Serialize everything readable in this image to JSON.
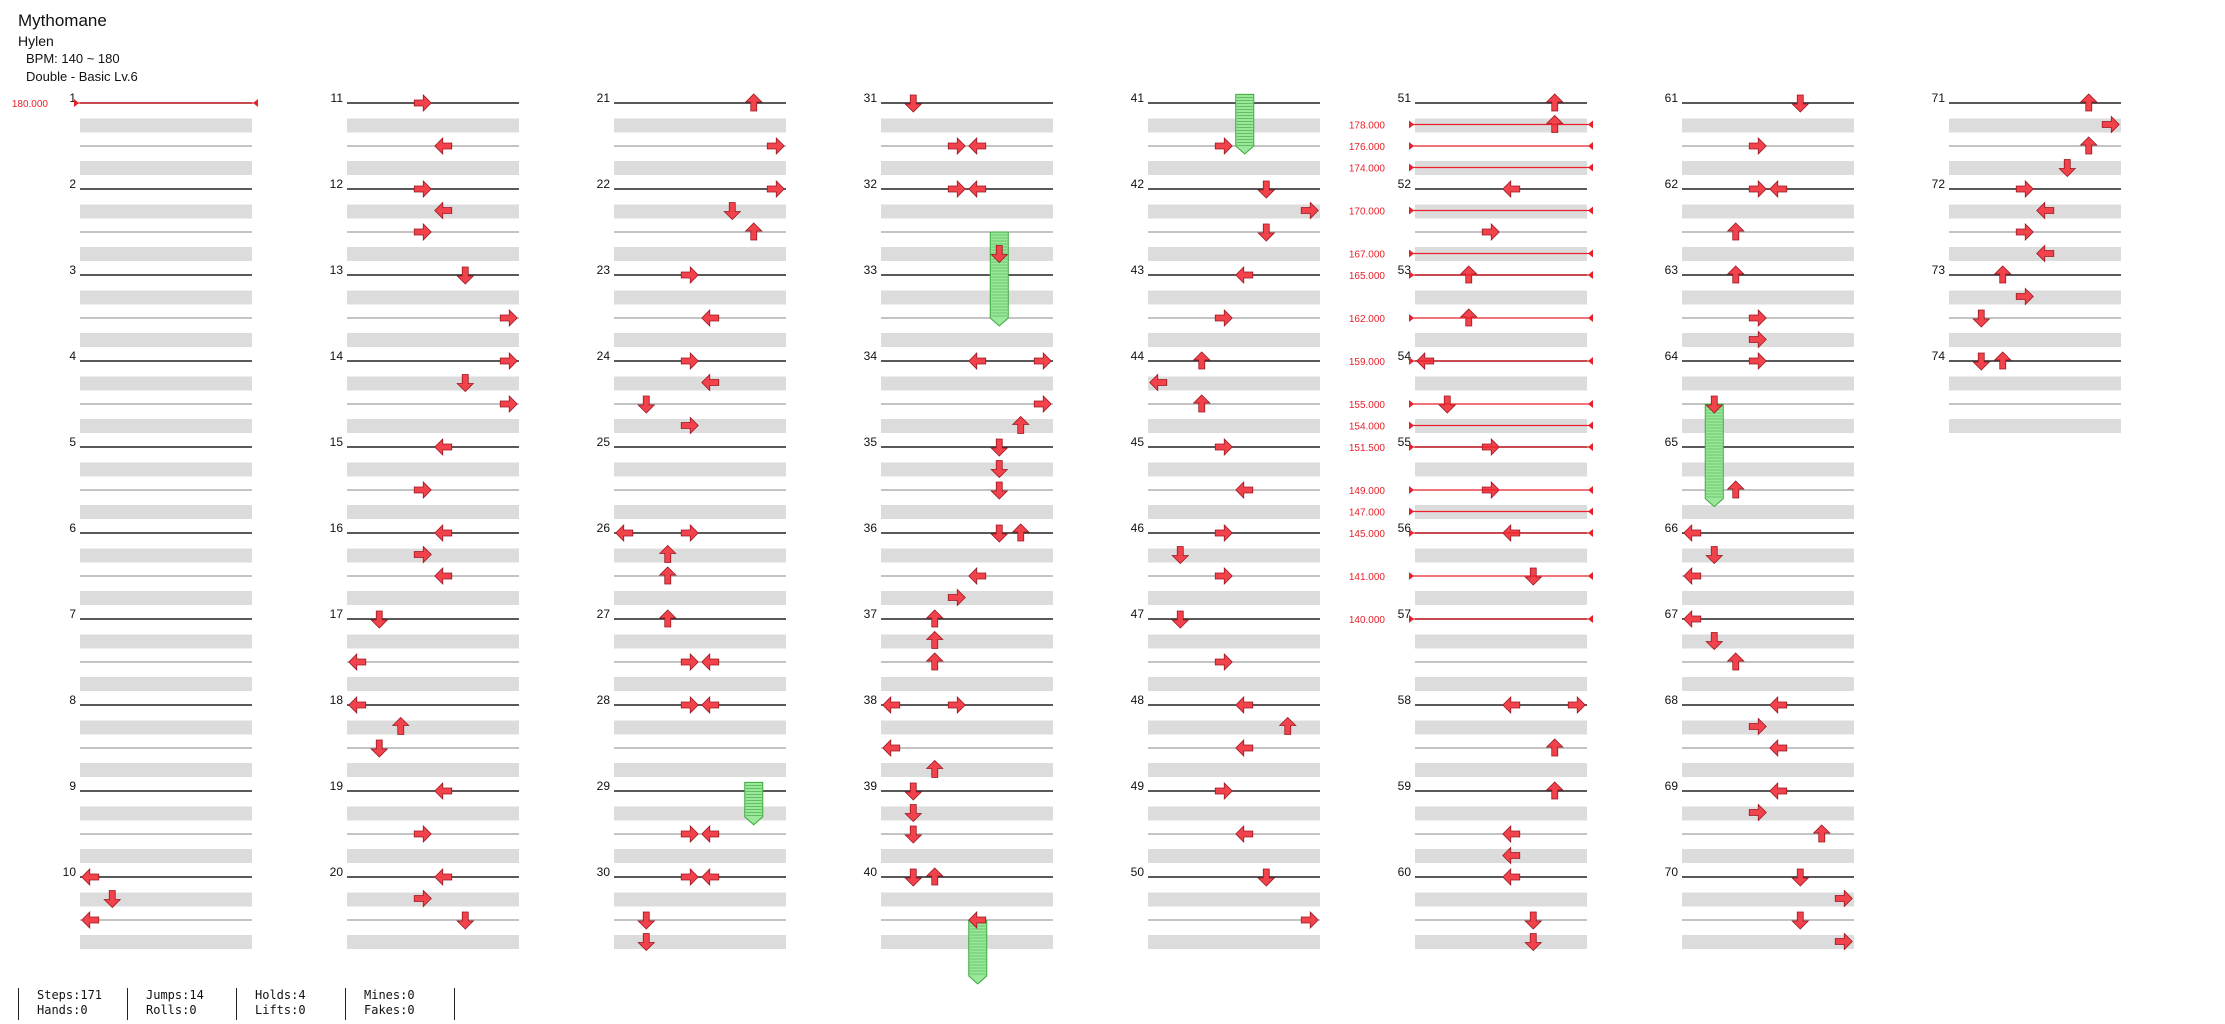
{
  "song": {
    "title": "Mythomane",
    "artist": "Hylen",
    "bpm_label": "BPM: 140 ~ 180",
    "difficulty_label": "Double - Basic Lv.6"
  },
  "chart_data": {
    "type": "other",
    "measures_per_column": 10,
    "measures": [
      {
        "n": 1,
        "notes": []
      },
      {
        "n": 2,
        "notes": []
      },
      {
        "n": 3,
        "notes": []
      },
      {
        "n": 4,
        "notes": []
      },
      {
        "n": 5,
        "notes": []
      },
      {
        "n": 6,
        "notes": []
      },
      {
        "n": 7,
        "notes": []
      },
      {
        "n": 8,
        "notes": []
      },
      {
        "n": 9,
        "notes": []
      },
      {
        "n": 10,
        "notes": [
          [
            0,
            0
          ],
          [
            1,
            1
          ],
          [
            2,
            0
          ]
        ]
      },
      {
        "n": 11,
        "notes": [
          [
            0,
            3
          ],
          [
            2,
            4
          ]
        ]
      },
      {
        "n": 12,
        "notes": [
          [
            0,
            3
          ],
          [
            1,
            4
          ],
          [
            2,
            3
          ]
        ]
      },
      {
        "n": 13,
        "notes": [
          [
            0,
            5
          ],
          [
            2,
            7
          ]
        ]
      },
      {
        "n": 14,
        "notes": [
          [
            0,
            7
          ],
          [
            1,
            5
          ],
          [
            2,
            7
          ]
        ]
      },
      {
        "n": 15,
        "notes": [
          [
            0,
            4
          ],
          [
            2,
            3
          ]
        ]
      },
      {
        "n": 16,
        "notes": [
          [
            0,
            4
          ],
          [
            1,
            3
          ],
          [
            2,
            4
          ]
        ]
      },
      {
        "n": 17,
        "notes": [
          [
            0,
            1
          ],
          [
            2,
            0
          ]
        ]
      },
      {
        "n": 18,
        "notes": [
          [
            0,
            0
          ],
          [
            1,
            2
          ],
          [
            2,
            1
          ]
        ]
      },
      {
        "n": 19,
        "notes": [
          [
            0,
            4
          ],
          [
            2,
            3
          ]
        ]
      },
      {
        "n": 20,
        "notes": [
          [
            0,
            4
          ],
          [
            1,
            3
          ],
          [
            2,
            5
          ]
        ]
      },
      {
        "n": 21,
        "notes": [
          [
            0,
            6
          ],
          [
            2,
            7
          ]
        ]
      },
      {
        "n": 22,
        "notes": [
          [
            0,
            7
          ],
          [
            1,
            5
          ],
          [
            2,
            6
          ]
        ]
      },
      {
        "n": 23,
        "notes": [
          [
            0,
            3
          ],
          [
            2,
            4
          ]
        ]
      },
      {
        "n": 24,
        "notes": [
          [
            0,
            3
          ],
          [
            1,
            4
          ],
          [
            2,
            1
          ],
          [
            3,
            3
          ]
        ]
      },
      {
        "n": 25,
        "notes": []
      },
      {
        "n": 26,
        "notes": [
          [
            0,
            0
          ],
          [
            0,
            3
          ],
          [
            1,
            2
          ],
          [
            2,
            2
          ]
        ]
      },
      {
        "n": 27,
        "notes": [
          [
            0,
            2
          ],
          [
            2,
            3
          ],
          [
            2,
            4
          ]
        ]
      },
      {
        "n": 28,
        "notes": [
          [
            0,
            3
          ],
          [
            0,
            4
          ]
        ]
      },
      {
        "n": 29,
        "notes": [
          [
            2,
            3
          ],
          [
            2,
            4
          ]
        ]
      },
      {
        "n": 30,
        "notes": [
          [
            0,
            3
          ],
          [
            0,
            4
          ],
          [
            2,
            1
          ],
          [
            3,
            1
          ]
        ]
      },
      {
        "n": 31,
        "notes": [
          [
            0,
            1
          ],
          [
            2,
            3
          ],
          [
            2,
            4
          ]
        ]
      },
      {
        "n": 32,
        "notes": [
          [
            0,
            3
          ],
          [
            0,
            4
          ],
          [
            3,
            5
          ]
        ]
      },
      {
        "n": 33,
        "notes": []
      },
      {
        "n": 34,
        "notes": [
          [
            0,
            4
          ],
          [
            0,
            7
          ],
          [
            2,
            7
          ],
          [
            3,
            6
          ]
        ]
      },
      {
        "n": 35,
        "notes": [
          [
            0,
            5
          ],
          [
            1,
            5
          ],
          [
            2,
            5
          ]
        ]
      },
      {
        "n": 36,
        "notes": [
          [
            0,
            5
          ],
          [
            0,
            6
          ],
          [
            2,
            4
          ],
          [
            3,
            3
          ]
        ]
      },
      {
        "n": 37,
        "notes": [
          [
            0,
            2
          ],
          [
            1,
            2
          ],
          [
            2,
            2
          ]
        ]
      },
      {
        "n": 38,
        "notes": [
          [
            0,
            0
          ],
          [
            0,
            3
          ],
          [
            2,
            0
          ],
          [
            3,
            2
          ]
        ]
      },
      {
        "n": 39,
        "notes": [
          [
            0,
            1
          ],
          [
            1,
            1
          ],
          [
            2,
            1
          ]
        ]
      },
      {
        "n": 40,
        "notes": [
          [
            0,
            1
          ],
          [
            0,
            2
          ],
          [
            2,
            4
          ]
        ]
      },
      {
        "n": 41,
        "notes": [
          [
            2,
            3
          ]
        ]
      },
      {
        "n": 42,
        "notes": [
          [
            0,
            5
          ],
          [
            1,
            7
          ],
          [
            2,
            5
          ]
        ]
      },
      {
        "n": 43,
        "notes": [
          [
            0,
            4
          ],
          [
            2,
            3
          ]
        ]
      },
      {
        "n": 44,
        "notes": [
          [
            0,
            2
          ],
          [
            1,
            0
          ],
          [
            2,
            2
          ]
        ]
      },
      {
        "n": 45,
        "notes": [
          [
            0,
            3
          ],
          [
            2,
            4
          ]
        ]
      },
      {
        "n": 46,
        "notes": [
          [
            0,
            3
          ],
          [
            1,
            1
          ],
          [
            2,
            3
          ]
        ]
      },
      {
        "n": 47,
        "notes": [
          [
            0,
            1
          ],
          [
            2,
            3
          ]
        ]
      },
      {
        "n": 48,
        "notes": [
          [
            0,
            4
          ],
          [
            1,
            6
          ],
          [
            2,
            4
          ]
        ]
      },
      {
        "n": 49,
        "notes": [
          [
            0,
            3
          ],
          [
            2,
            4
          ]
        ]
      },
      {
        "n": 50,
        "notes": [
          [
            0,
            5
          ],
          [
            2,
            7
          ]
        ]
      },
      {
        "n": 51,
        "notes": [
          [
            0,
            6
          ],
          [
            1,
            6
          ]
        ]
      },
      {
        "n": 52,
        "notes": [
          [
            0,
            4
          ],
          [
            2,
            3
          ]
        ]
      },
      {
        "n": 53,
        "notes": [
          [
            0,
            2
          ],
          [
            2,
            2
          ]
        ]
      },
      {
        "n": 54,
        "notes": [
          [
            0,
            0
          ],
          [
            2,
            1
          ]
        ]
      },
      {
        "n": 55,
        "notes": [
          [
            0,
            3
          ],
          [
            2,
            3
          ]
        ]
      },
      {
        "n": 56,
        "notes": [
          [
            0,
            4
          ],
          [
            2,
            5
          ]
        ]
      },
      {
        "n": 57,
        "notes": []
      },
      {
        "n": 58,
        "notes": [
          [
            0,
            4
          ],
          [
            0,
            7
          ],
          [
            2,
            6
          ]
        ]
      },
      {
        "n": 59,
        "notes": [
          [
            0,
            6
          ],
          [
            2,
            4
          ],
          [
            3,
            4
          ]
        ]
      },
      {
        "n": 60,
        "notes": [
          [
            0,
            4
          ],
          [
            2,
            5
          ],
          [
            3,
            5
          ]
        ]
      },
      {
        "n": 61,
        "notes": [
          [
            0,
            5
          ],
          [
            2,
            3
          ]
        ]
      },
      {
        "n": 62,
        "notes": [
          [
            0,
            3
          ],
          [
            0,
            4
          ],
          [
            2,
            2
          ]
        ]
      },
      {
        "n": 63,
        "notes": [
          [
            0,
            2
          ],
          [
            2,
            3
          ],
          [
            3,
            3
          ]
        ]
      },
      {
        "n": 64,
        "notes": [
          [
            0,
            3
          ],
          [
            2,
            1
          ]
        ]
      },
      {
        "n": 65,
        "notes": [
          [
            2,
            2
          ]
        ]
      },
      {
        "n": 66,
        "notes": [
          [
            0,
            0
          ],
          [
            1,
            1
          ],
          [
            2,
            0
          ]
        ]
      },
      {
        "n": 67,
        "notes": [
          [
            0,
            0
          ],
          [
            1,
            1
          ],
          [
            2,
            2
          ]
        ]
      },
      {
        "n": 68,
        "notes": [
          [
            0,
            4
          ],
          [
            1,
            3
          ],
          [
            2,
            4
          ]
        ]
      },
      {
        "n": 69,
        "notes": [
          [
            0,
            4
          ],
          [
            1,
            3
          ],
          [
            2,
            6
          ]
        ]
      },
      {
        "n": 70,
        "notes": [
          [
            0,
            5
          ],
          [
            1,
            7
          ],
          [
            2,
            5
          ],
          [
            3,
            7
          ]
        ]
      },
      {
        "n": 71,
        "notes": [
          [
            0,
            6
          ],
          [
            1,
            7
          ],
          [
            2,
            6
          ],
          [
            3,
            5
          ]
        ]
      },
      {
        "n": 72,
        "notes": [
          [
            0,
            3
          ],
          [
            1,
            4
          ],
          [
            2,
            3
          ],
          [
            3,
            4
          ]
        ]
      },
      {
        "n": 73,
        "notes": [
          [
            0,
            2
          ],
          [
            1,
            3
          ],
          [
            2,
            1
          ]
        ]
      },
      {
        "n": 74,
        "notes": [
          [
            0,
            1
          ],
          [
            0,
            2
          ]
        ]
      }
    ],
    "holds": [
      {
        "measure": 29,
        "lane": 6,
        "from_row": -0.4,
        "to_row": 1.2
      },
      {
        "measure": 32,
        "lane": 5,
        "from_row": 2,
        "to_row": 6
      },
      {
        "measure": 40,
        "lane": 4,
        "from_row": 2,
        "to_row": 4.6
      },
      {
        "measure": 41,
        "lane": 4,
        "from_row": -0.4,
        "to_row": 2
      },
      {
        "measure": 64,
        "lane": 1,
        "from_row": 2,
        "to_row": 6.4
      }
    ],
    "bpm_column_label": [
      {
        "bpm": "180.000",
        "measure": 1,
        "row": 0
      }
    ],
    "bpm_changes": [
      {
        "bpm": "178.000",
        "measure": 51,
        "row": 1
      },
      {
        "bpm": "176.000",
        "measure": 51,
        "row": 2
      },
      {
        "bpm": "174.000",
        "measure": 51,
        "row": 3
      },
      {
        "bpm": "170.000",
        "measure": 52,
        "row": 1
      },
      {
        "bpm": "167.000",
        "measure": 52,
        "row": 3
      },
      {
        "bpm": "165.000",
        "measure": 53,
        "row": 0
      },
      {
        "bpm": "162.000",
        "measure": 53,
        "row": 2
      },
      {
        "bpm": "159.000",
        "measure": 54,
        "row": 0
      },
      {
        "bpm": "155.000",
        "measure": 54,
        "row": 2
      },
      {
        "bpm": "154.000",
        "measure": 54,
        "row": 3
      },
      {
        "bpm": "151.500",
        "measure": 55,
        "row": 0
      },
      {
        "bpm": "149.000",
        "measure": 55,
        "row": 2
      },
      {
        "bpm": "147.000",
        "measure": 55,
        "row": 3
      },
      {
        "bpm": "145.000",
        "measure": 56,
        "row": 0
      },
      {
        "bpm": "141.000",
        "measure": 56,
        "row": 2
      },
      {
        "bpm": "140.000",
        "measure": 57,
        "row": 0
      }
    ],
    "lane_directions": [
      "left",
      "down",
      "up",
      "right",
      "left",
      "down",
      "up",
      "right"
    ],
    "colors": {
      "note": "#f2434d",
      "note_outline": "#9a1620",
      "hold": "#9be79b",
      "hold_stripe": "#3aaa3a",
      "bpm": "#e8202a",
      "band": "#dcdcdc"
    }
  },
  "stats": {
    "steps": "Steps:171",
    "jumps": "Jumps:14",
    "holds": "Holds:4",
    "mines": "Mines:0",
    "hands": "Hands:0",
    "rolls": "Rolls:0",
    "lifts": "Lifts:0",
    "fakes": "Fakes:0"
  }
}
